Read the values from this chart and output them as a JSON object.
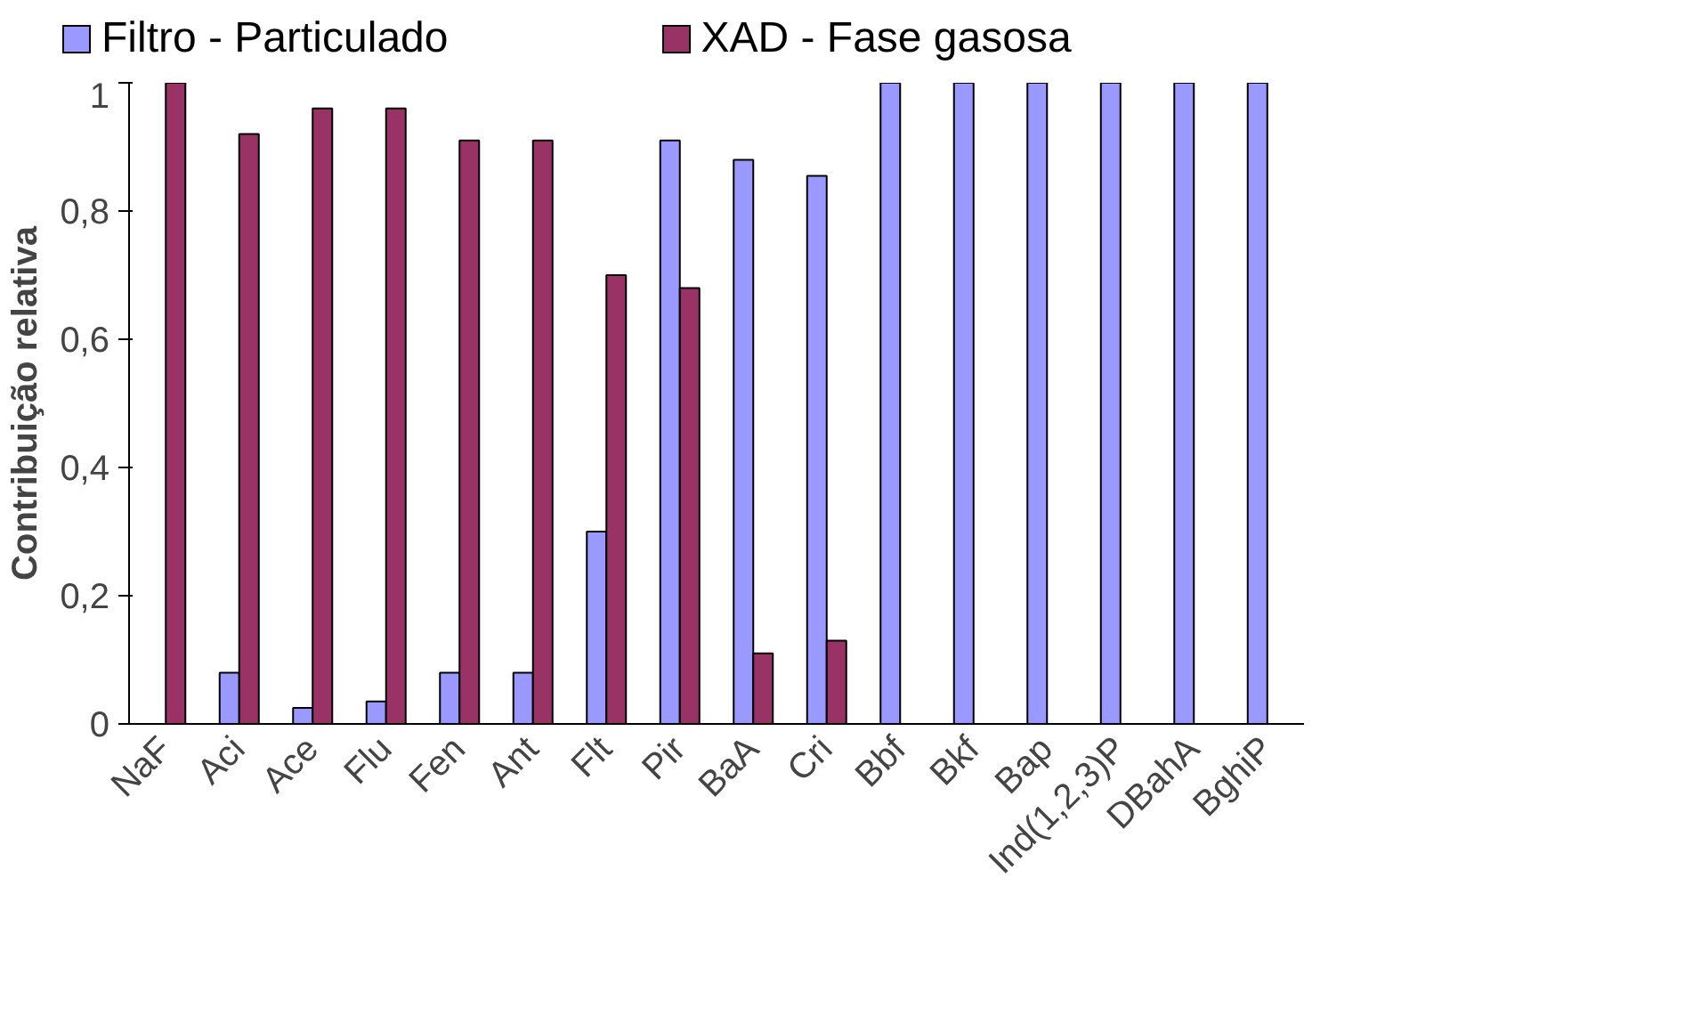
{
  "chart_data": {
    "type": "bar",
    "ylabel": "Contribuição relativa",
    "categories": [
      "NaF",
      "Aci",
      "Ace",
      "Flu",
      "Fen",
      "Ant",
      "Flt",
      "Pir",
      "BaA",
      "Cri",
      "Bbf",
      "Bkf",
      "Bap",
      "Ind(1,2,3)P",
      "DBahA",
      "BghiP"
    ],
    "series": [
      {
        "name": "Filtro - Particulado",
        "color": "#9999ff",
        "values": [
          0,
          0.08,
          0.025,
          0.035,
          0.08,
          0.08,
          0.3,
          0.91,
          0.88,
          0.855,
          1,
          1,
          1,
          1,
          1,
          1
        ]
      },
      {
        "name": "XAD - Fase gasosa",
        "color": "#993366",
        "values": [
          1,
          0.92,
          0.96,
          0.96,
          0.91,
          0.91,
          0.7,
          0.68,
          0.11,
          0.13,
          0,
          0,
          0,
          0,
          0,
          0
        ]
      }
    ],
    "ylim": [
      0,
      1
    ],
    "yticks": [
      0,
      {
        "value": 0.2,
        "label": "0,2"
      },
      {
        "value": 0.4,
        "label": "0,4"
      },
      {
        "value": 0.6,
        "label": "0,6"
      },
      {
        "value": 0.8,
        "label": "0,8"
      },
      1
    ],
    "grid": false,
    "legend": "top"
  }
}
